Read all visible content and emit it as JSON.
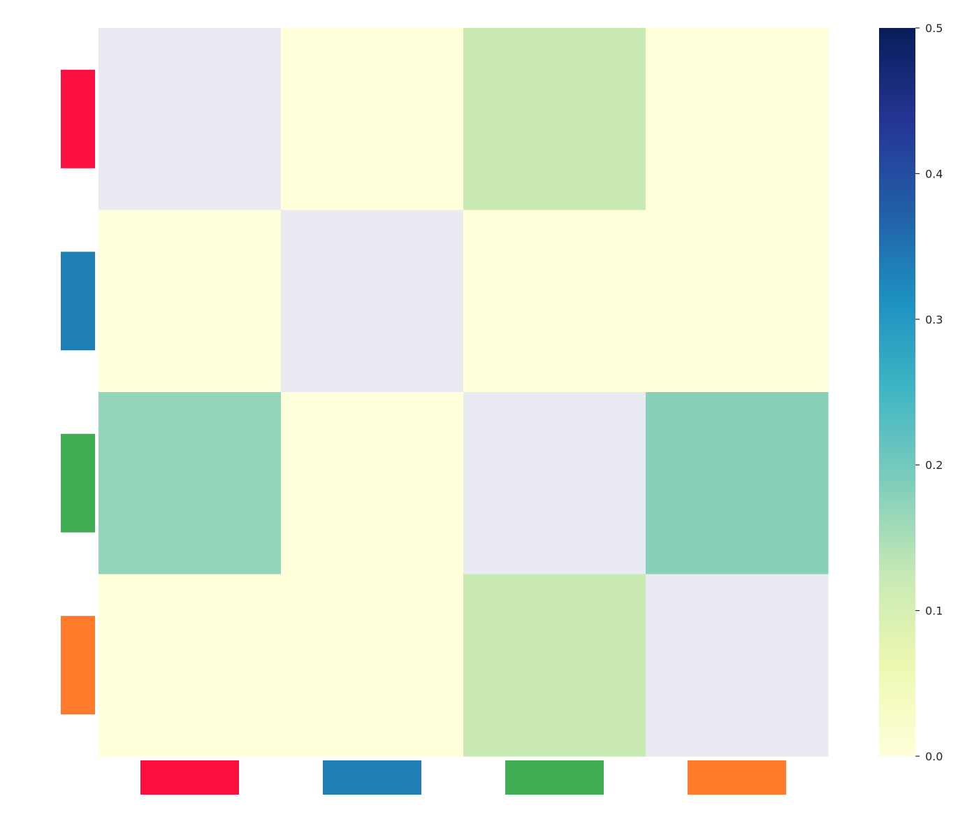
{
  "chart_data": {
    "type": "heatmap",
    "title": "",
    "xlabel": "",
    "ylabel": "",
    "rows": 4,
    "cols": 4,
    "category_colors": [
      "#fb0f3e",
      "#1f7fb4",
      "#3fae55",
      "#ff7a2a"
    ],
    "values": [
      [
        null,
        0.0,
        0.12,
        0.0
      ],
      [
        0.0,
        null,
        0.0,
        0.0
      ],
      [
        0.17,
        0.0,
        null,
        0.18
      ],
      [
        0.0,
        0.0,
        0.12,
        null
      ]
    ],
    "missing_color": "#eaeaf2",
    "colorbar": {
      "vmin": 0.0,
      "vmax": 0.5,
      "ticks": [
        0.0,
        0.1,
        0.2,
        0.3,
        0.4,
        0.5
      ],
      "tick_labels": [
        "0.0",
        "0.1",
        "0.2",
        "0.3",
        "0.4",
        "0.5"
      ],
      "colormap": "YlGnBu"
    },
    "grid": false
  }
}
